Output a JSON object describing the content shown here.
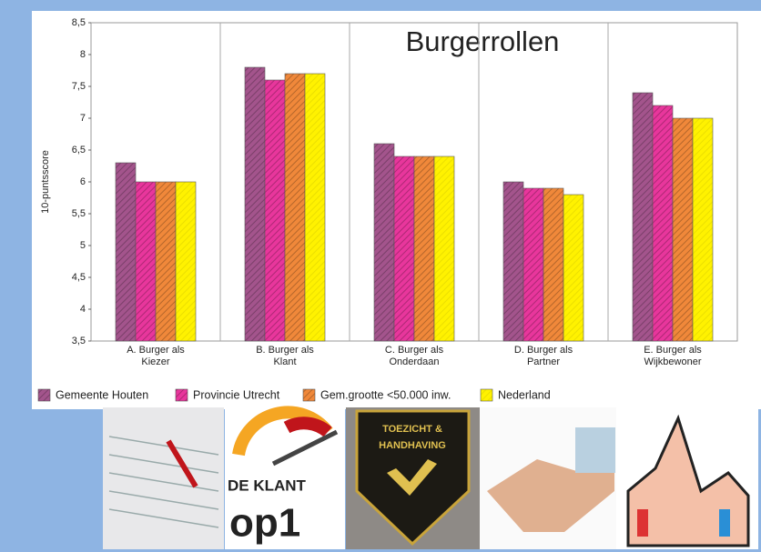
{
  "chart_data": {
    "type": "bar",
    "title": "Burgerrollen",
    "ylabel": "10-puntsscore",
    "categories": [
      "A. Burger als Kiezer",
      "B. Burger als Klant",
      "C. Burger als Onderdaan",
      "D. Burger als Partner",
      "E. Burger als Wijkbewoner"
    ],
    "series": [
      {
        "name": "Gemeente Houten",
        "color": "#a3548c",
        "values": [
          6.3,
          7.8,
          6.6,
          6.0,
          7.4
        ]
      },
      {
        "name": "Provincie Utrecht",
        "color": "#e8369c",
        "values": [
          6.0,
          7.6,
          6.4,
          5.9,
          7.2
        ]
      },
      {
        "name": "Gem.grootte <50.000 inw.",
        "color": "#f0883a",
        "values": [
          6.0,
          7.7,
          6.4,
          5.9,
          7.0
        ]
      },
      {
        "name": "Nederland",
        "color": "#fff200",
        "values": [
          6.0,
          7.7,
          6.4,
          5.8,
          7.0
        ]
      }
    ],
    "ylim": [
      3.5,
      8.5
    ],
    "yticks": [
      {
        "value": 3.5,
        "label": "3,5"
      },
      4,
      {
        "value": 4.5,
        "label": "4,5"
      },
      5,
      {
        "value": 5.5,
        "label": "5,5"
      },
      6,
      {
        "value": 6.5,
        "label": "6,5"
      },
      7,
      {
        "value": 7.5,
        "label": "7,5"
      },
      8,
      {
        "value": 8.5,
        "label": "8,5"
      }
    ],
    "grid": false,
    "category_separators": true,
    "legend": "bottom"
  },
  "images": {
    "5": {
      "label1": "TOEZICHT &",
      "label2": "HANDHAVING"
    },
    "2": {
      "line1": "DE KLANT",
      "line2": "op1"
    }
  }
}
